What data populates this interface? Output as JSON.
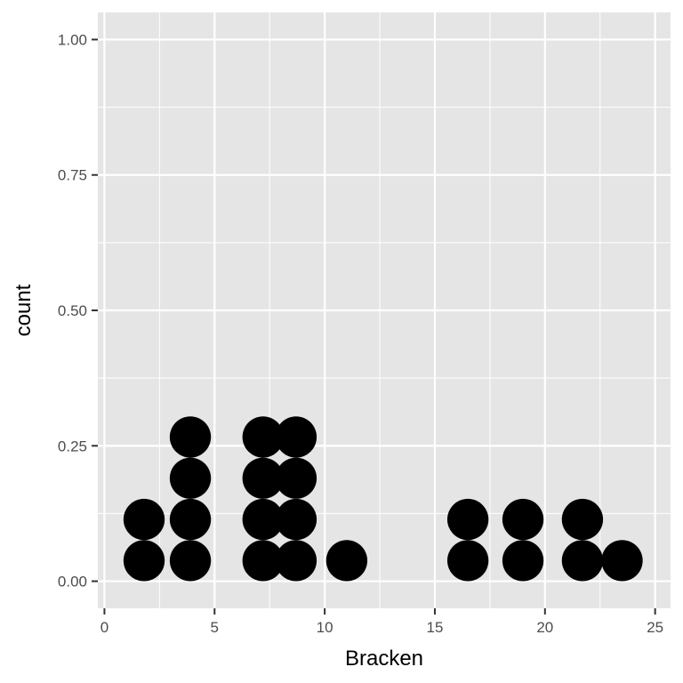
{
  "chart_data": {
    "type": "dotplot",
    "xlabel": "Bracken",
    "ylabel": "count",
    "xlim": [
      -0.3,
      25.7
    ],
    "ylim": [
      -0.05,
      1.05
    ],
    "x_ticks": [
      0,
      5,
      10,
      15,
      20,
      25
    ],
    "x_tick_labels": [
      "0",
      "5",
      "10",
      "15",
      "20",
      "25"
    ],
    "y_ticks": [
      0,
      0.25,
      0.5,
      0.75,
      1
    ],
    "y_tick_labels": [
      "0.00",
      "0.25",
      "0.50",
      "0.75",
      "1.00"
    ],
    "grid": true,
    "background": "#e5e5e5",
    "grid_color": "#ffffff",
    "dot_color": "#000000",
    "dot_binwidth": 1.87,
    "stacks": [
      {
        "x": 1.8,
        "count": 2
      },
      {
        "x": 3.9,
        "count": 4
      },
      {
        "x": 7.2,
        "count": 4
      },
      {
        "x": 8.7,
        "count": 4
      },
      {
        "x": 11.0,
        "count": 1
      },
      {
        "x": 16.5,
        "count": 2
      },
      {
        "x": 19.0,
        "count": 2
      },
      {
        "x": 21.7,
        "count": 2
      },
      {
        "x": 23.5,
        "count": 1
      }
    ]
  }
}
